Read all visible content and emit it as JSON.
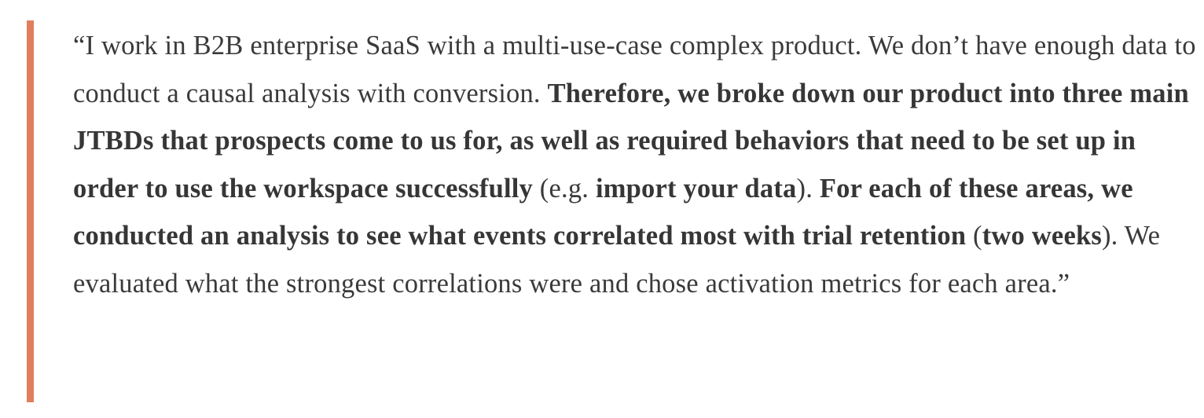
{
  "blockquote": {
    "accent_color": "#e07f5e",
    "segments": [
      {
        "text": "“I work in B2B enterprise SaaS with a multi-use-case complex product. We don’t have enough data to conduct a causal analysis with conversion. ",
        "bold": false
      },
      {
        "text": "Therefore, we broke down our product into three main JTBDs that prospects come to us for, as well as required behaviors that need to be set up in order to use the workspace successfully",
        "bold": true
      },
      {
        "text": " (e.g. ",
        "bold": false
      },
      {
        "text": "import your data",
        "bold": true
      },
      {
        "text": "). ",
        "bold": false
      },
      {
        "text": "For each of these areas, we conducted an analysis to see what events correlated most with trial retention",
        "bold": true
      },
      {
        "text": " (",
        "bold": false
      },
      {
        "text": "two weeks",
        "bold": true
      },
      {
        "text": "). We evaluated what the strongest correlations were and chose activation metrics for each area.”",
        "bold": false
      }
    ]
  }
}
